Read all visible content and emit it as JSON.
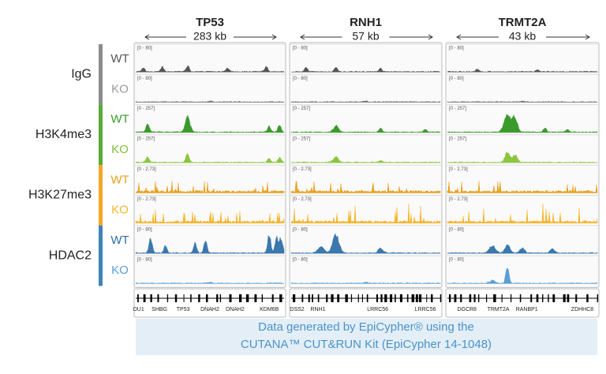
{
  "columns": [
    {
      "gene": "TP53",
      "span": "283 kb",
      "annotations": [
        "DU1",
        "SHBG",
        "TP53",
        "DNAH2",
        "DNAH2",
        "KDM6B"
      ]
    },
    {
      "gene": "RNH1",
      "span": "57 kb",
      "annotations": [
        "DSS2",
        "RNH1",
        "LRRC56",
        "LRRC56"
      ]
    },
    {
      "gene": "TRMT2A",
      "span": "43 kb",
      "annotations": [
        "DGCR8",
        "TRMT2A",
        "RANBP1",
        "ZDHHC8"
      ]
    }
  ],
  "groups": [
    {
      "name": "IgG",
      "range": "[0 - 80]",
      "samples": [
        "WT",
        "KO"
      ]
    },
    {
      "name": "H3K4me3",
      "range": "[0 - 257]",
      "samples": [
        "WT",
        "KO"
      ]
    },
    {
      "name": "H3K27me3",
      "range": "[0 - 2.73]",
      "samples": [
        "WT",
        "KO"
      ]
    },
    {
      "name": "HDAC2",
      "range": "[0 - 80]",
      "samples": [
        "WT",
        "KO"
      ]
    }
  ],
  "footer": {
    "line1": "Data generated by EpiCypher® using the",
    "line2": "CUTANA™ CUT&RUN Kit (EpiCypher 14-1048)"
  }
}
